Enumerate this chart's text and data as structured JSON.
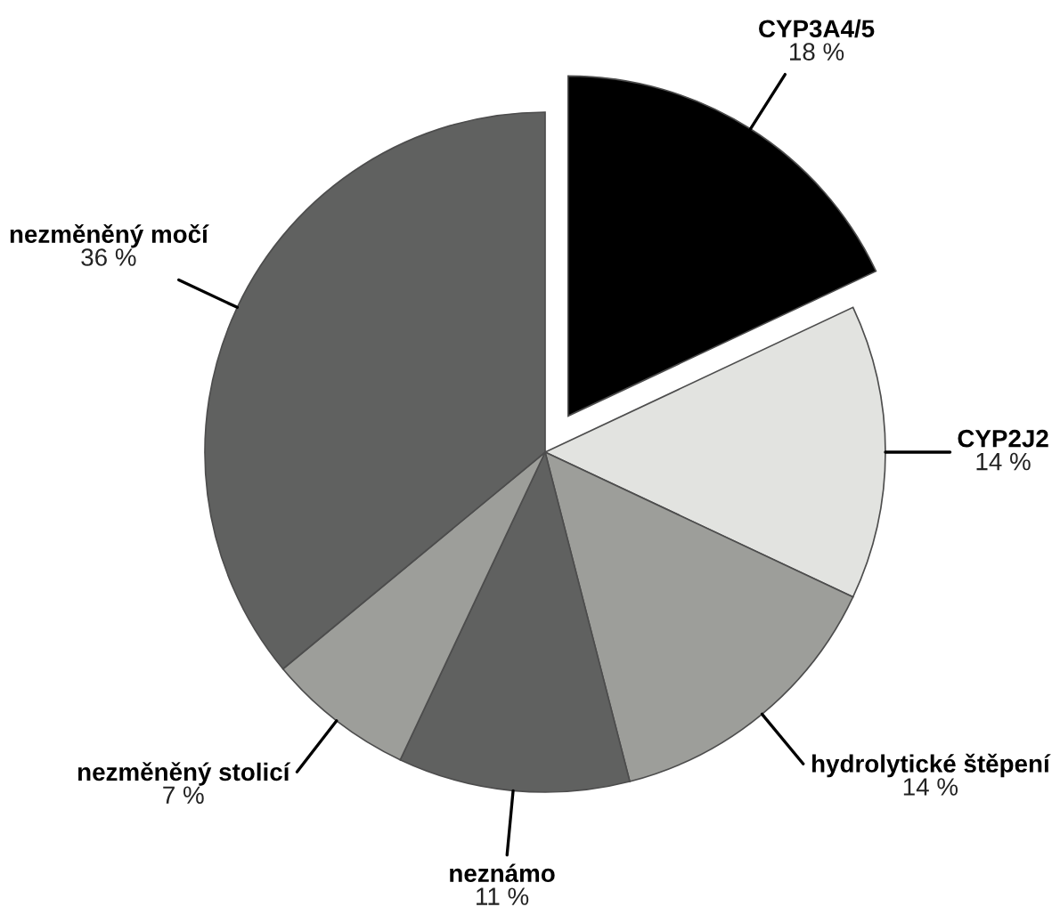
{
  "chart_data": {
    "type": "pie",
    "categories": [
      "CYP3A4/5",
      "CYP2J2",
      "hydrolytické štěpení",
      "neznámo",
      "nezměněný stolicí",
      "nezměněný močí"
    ],
    "values": [
      18,
      14,
      14,
      11,
      7,
      36
    ],
    "value_labels": [
      "18 %",
      "14 %",
      "14 %",
      "11 %",
      "7 %",
      "36 %"
    ],
    "colors": [
      "#000000",
      "#e2e3e0",
      "#9d9e9a",
      "#606160",
      "#9d9e9a",
      "#606160"
    ]
  }
}
